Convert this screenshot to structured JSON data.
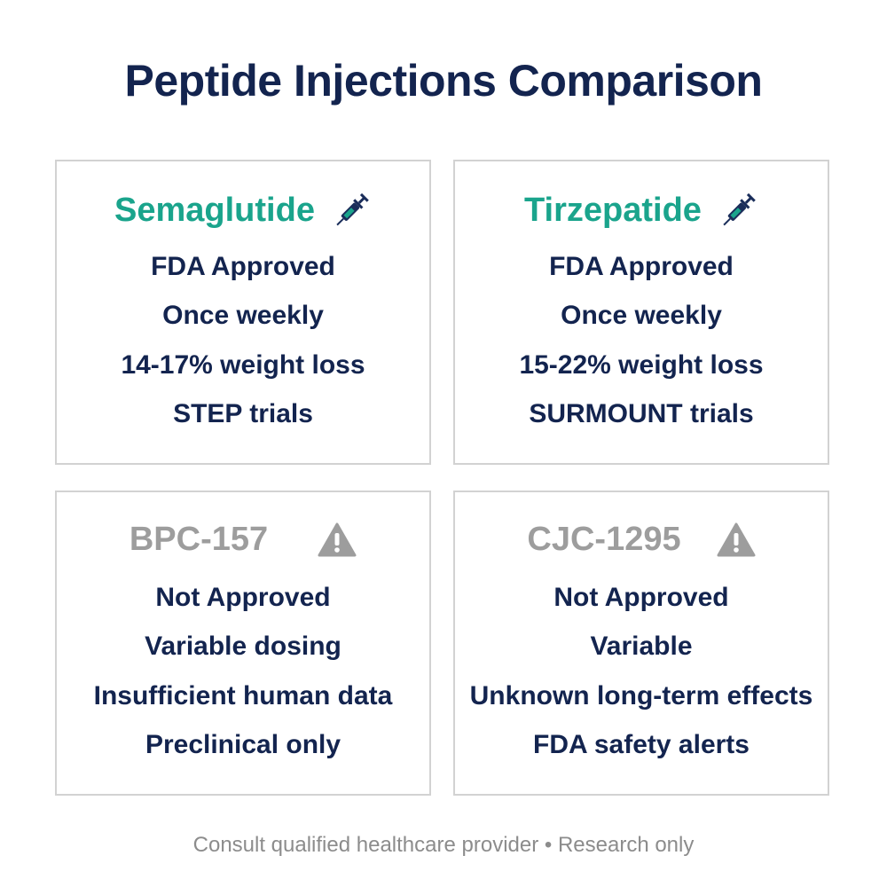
{
  "title": "Peptide Injections Comparison",
  "cards": [
    {
      "name": "Semaglutide",
      "lines": [
        "FDA Approved",
        "Once weekly",
        "14-17% weight loss",
        "STEP trials"
      ]
    },
    {
      "name": "Tirzepatide",
      "lines": [
        "FDA Approved",
        "Once weekly",
        "15-22% weight loss",
        "SURMOUNT trials"
      ]
    },
    {
      "name": "BPC-157",
      "lines": [
        "Not Approved",
        "Variable dosing",
        "Insufficient human data",
        "Preclinical only"
      ]
    },
    {
      "name": "CJC-1295",
      "lines": [
        "Not Approved",
        "Variable",
        "Unknown long-term effects",
        "FDA safety alerts"
      ]
    }
  ],
  "footer": "Consult qualified healthcare provider • Research only"
}
